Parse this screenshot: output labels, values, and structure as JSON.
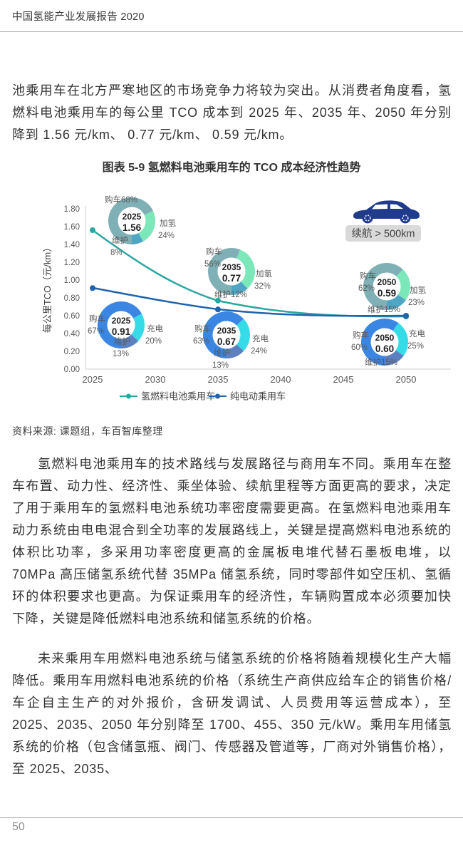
{
  "header": {
    "title": "中国氢能产业发展报告 2020"
  },
  "paragraphs": {
    "p1": "池乘用车在北方严寒地区的市场竞争力将较为突出。从消费者角度看，氢燃料电池乘用车的每公里 TCO 成本到 2025 年、2035 年、2050 年分别降到 1.56 元/km、 0.77 元/km、 0.59 元/km。",
    "p2": "氢燃料电池乘用车的技术路线与发展路径与商用车不同。乘用车在整车布置、动力性、经济性、乘坐体验、续航里程等方面更高的要求，决定了用于乘用车的氢燃料电池系统功率密度需要更高。在氢燃料电池乘用车动力系统由电电混合到全功率的发展路线上，关键是提高燃料电池系统的体积比功率，多采用功率密度更高的金属板电堆代替石墨板电堆，以 70MPa 高压储氢系统代替 35MPa 储氢系统，同时零部件如空压机、氢循环的体积要求也更高。为保证乘用车的经济性，车辆购置成本必须要加快下降，关键是降低燃料电池系统和储氢系统的价格。",
    "p3": "未来乘用车用燃料电池系统与储氢系统的价格将随着规模化生产大幅降低。乘用车用燃料电池系统的价格（系统生产商供应给车企的销售价格/车企自主生产的对外报价，含研发调试、人员费用等运营成本），至 2025、2035、2050 年分别降至 1700、455、350 元/kW。乘用车用储氢系统的价格（包含储氢瓶、阀门、传感器及管道等，厂商对外销售价格），至 2025、2035、"
  },
  "figure": {
    "title": "图表 5-9 氢燃料电池乘用车的 TCO 成本经济性趋势",
    "source": "资料来源: 课题组，车百智库整理"
  },
  "footer": {
    "page_number": "50"
  },
  "chart_data": {
    "type": "line",
    "title": "图表 5-9 氢燃料电池乘用车的 TCO 成本经济性趋势",
    "ylabel": "每公里TCO（元/km）",
    "xlim": [
      2025,
      2050
    ],
    "ylim": [
      0,
      1.8
    ],
    "grid": false,
    "legend_position": "bottom",
    "annotation_badge": "续航 > 500km",
    "car_color": "#203B8C",
    "x_ticks": [
      "2025",
      "2030",
      "2035",
      "2040",
      "2045",
      "2050"
    ],
    "y_ticks": [
      "0.00",
      "0.20",
      "0.40",
      "0.60",
      "0.80",
      "1.00",
      "1.20",
      "1.40",
      "1.60",
      "1.80"
    ],
    "series": [
      {
        "name": "氢燃料电池乘用车",
        "color": "#2CA6A0",
        "x": [
          2025,
          2035,
          2050
        ],
        "values": [
          1.56,
          0.77,
          0.59
        ]
      },
      {
        "name": "纯电动乘用车",
        "color": "#1F63AC",
        "x": [
          2025,
          2035,
          2050
        ],
        "values": [
          0.91,
          0.67,
          0.6
        ]
      }
    ],
    "donuts": [
      {
        "series": "氢燃料电池乘用车",
        "year": "2025",
        "value": "1.56",
        "segments": [
          {
            "label": "购车",
            "pct": 68
          },
          {
            "label": "加氢",
            "pct": 24
          },
          {
            "label": "维护",
            "pct": 8
          }
        ]
      },
      {
        "series": "氢燃料电池乘用车",
        "year": "2035",
        "value": "0.77",
        "segments": [
          {
            "label": "购车",
            "pct": 56
          },
          {
            "label": "加氢",
            "pct": 32
          },
          {
            "label": "维护",
            "pct": 12
          }
        ]
      },
      {
        "series": "氢燃料电池乘用车",
        "year": "2050",
        "value": "0.59",
        "segments": [
          {
            "label": "购车",
            "pct": 62
          },
          {
            "label": "加氢",
            "pct": 23
          },
          {
            "label": "维护",
            "pct": 15
          }
        ]
      },
      {
        "series": "纯电动乘用车",
        "year": "2025",
        "value": "0.91",
        "segments": [
          {
            "label": "购车",
            "pct": 67
          },
          {
            "label": "充电",
            "pct": 20
          },
          {
            "label": "维护",
            "pct": 13
          }
        ]
      },
      {
        "series": "纯电动乘用车",
        "year": "2035",
        "value": "0.67",
        "segments": [
          {
            "label": "购车",
            "pct": 63
          },
          {
            "label": "充电",
            "pct": 24
          },
          {
            "label": "维护",
            "pct": 13
          }
        ]
      },
      {
        "series": "纯电动乘用车",
        "year": "2050",
        "value": "0.60",
        "segments": [
          {
            "label": "购车",
            "pct": 60
          },
          {
            "label": "充电",
            "pct": 25
          },
          {
            "label": "维护",
            "pct": 15
          }
        ]
      }
    ],
    "palettes": {
      "氢燃料电池乘用车": [
        "#7FB0B5",
        "#7CE8BA",
        "#4EA5C4"
      ],
      "纯电动乘用车": [
        "#3C86E3",
        "#35DCE8",
        "#5C80C0"
      ]
    }
  }
}
